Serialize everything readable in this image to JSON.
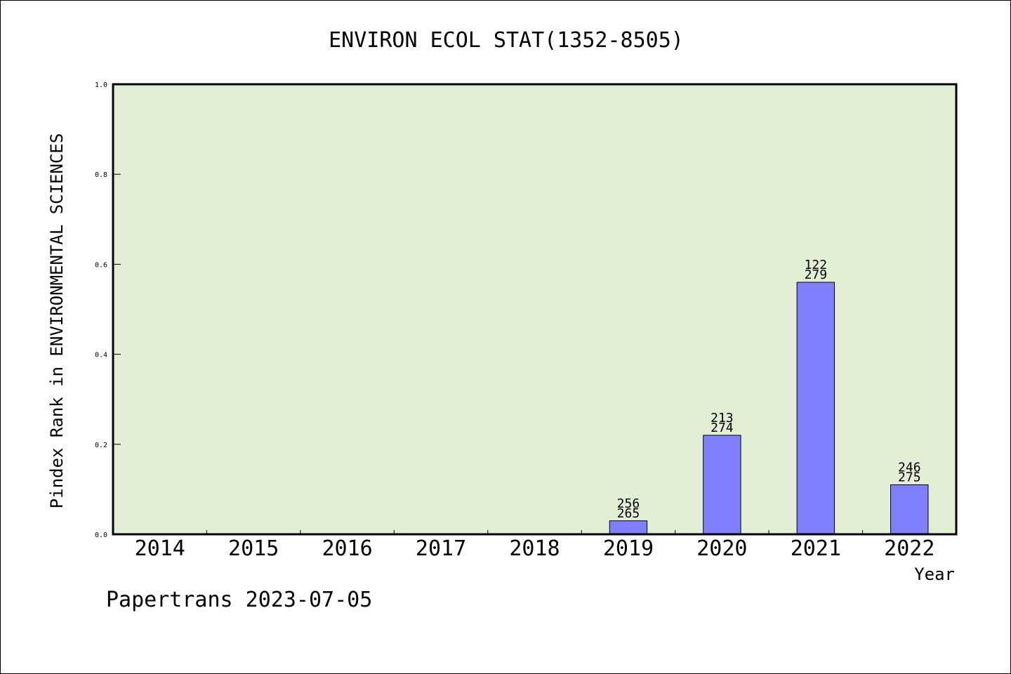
{
  "chart_data": {
    "type": "bar",
    "title": "ENVIRON ECOL STAT(1352-8505)",
    "xlabel": "Year",
    "ylabel": "Pindex Rank in ENVIRONMENTAL SCIENCES",
    "categories": [
      "2014",
      "2015",
      "2016",
      "2017",
      "2018",
      "2019",
      "2020",
      "2021",
      "2022"
    ],
    "values": [
      0,
      0,
      0,
      0,
      0,
      0.03,
      0.22,
      0.56,
      0.11
    ],
    "bar_labels": [
      null,
      null,
      null,
      null,
      null,
      [
        "256",
        "265"
      ],
      [
        "213",
        "274"
      ],
      [
        "122",
        "279"
      ],
      [
        "246",
        "275"
      ]
    ],
    "ylim": [
      0,
      1.0
    ],
    "yticks": [
      "0.0",
      "0.2",
      "0.4",
      "0.6",
      "0.8",
      "1.0"
    ],
    "grid": false,
    "colors": {
      "plot_background": "#e2efd5",
      "bar_fill": "#8080ff",
      "bar_stroke": "#000000"
    }
  },
  "footer": "Papertrans 2023-07-05"
}
